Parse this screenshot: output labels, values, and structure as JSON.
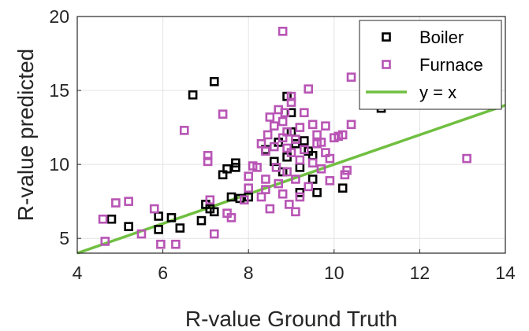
{
  "chart_data": {
    "type": "scatter",
    "title": "",
    "xlabel": "R-value Ground Truth",
    "ylabel": "R-value predicted",
    "xlim": [
      4,
      14
    ],
    "ylim": [
      4,
      20
    ],
    "xticks": [
      "4",
      "6",
      "8",
      "10",
      "12",
      "14"
    ],
    "yticks": [
      "5",
      "10",
      "15",
      "20"
    ],
    "grid": true,
    "legend_position": "top-right",
    "series": [
      {
        "name": "Boiler",
        "marker": "square",
        "color": "#000000",
        "points": [
          [
            4.8,
            6.3
          ],
          [
            5.2,
            5.8
          ],
          [
            5.9,
            5.6
          ],
          [
            5.9,
            6.5
          ],
          [
            6.2,
            6.4
          ],
          [
            6.4,
            5.7
          ],
          [
            6.7,
            14.7
          ],
          [
            6.9,
            6.2
          ],
          [
            7.0,
            7.3
          ],
          [
            7.1,
            7.0
          ],
          [
            7.2,
            6.8
          ],
          [
            7.2,
            15.6
          ],
          [
            7.4,
            9.3
          ],
          [
            7.5,
            9.7
          ],
          [
            7.7,
            9.8
          ],
          [
            7.7,
            10.1
          ],
          [
            7.6,
            7.8
          ],
          [
            7.8,
            7.7
          ],
          [
            8.0,
            7.8
          ],
          [
            8.4,
            11.0
          ],
          [
            8.6,
            10.2
          ],
          [
            8.7,
            11.5
          ],
          [
            8.8,
            9.5
          ],
          [
            8.9,
            10.5
          ],
          [
            8.9,
            14.6
          ],
          [
            9.0,
            12.2
          ],
          [
            9.0,
            13.5
          ],
          [
            9.1,
            11.4
          ],
          [
            9.2,
            9.8
          ],
          [
            9.2,
            8.1
          ],
          [
            9.3,
            11.6
          ],
          [
            9.4,
            10.9
          ],
          [
            9.5,
            9.0
          ],
          [
            9.5,
            10.6
          ],
          [
            9.6,
            8.1
          ],
          [
            10.2,
            8.4
          ],
          [
            11.1,
            13.8
          ]
        ]
      },
      {
        "name": "Furnace",
        "marker": "square",
        "color": "#b855b5",
        "points": [
          [
            4.6,
            6.3
          ],
          [
            4.65,
            4.8
          ],
          [
            4.9,
            7.4
          ],
          [
            5.2,
            7.5
          ],
          [
            5.5,
            5.3
          ],
          [
            5.8,
            7.0
          ],
          [
            5.95,
            4.6
          ],
          [
            6.3,
            4.6
          ],
          [
            6.5,
            12.3
          ],
          [
            7.05,
            10.2
          ],
          [
            7.05,
            10.6
          ],
          [
            7.1,
            7.6
          ],
          [
            7.2,
            5.3
          ],
          [
            7.4,
            13.4
          ],
          [
            7.5,
            6.7
          ],
          [
            7.6,
            6.4
          ],
          [
            7.9,
            7.6
          ],
          [
            8.0,
            8.4
          ],
          [
            8.0,
            9.2
          ],
          [
            8.1,
            9.9
          ],
          [
            8.2,
            9.8
          ],
          [
            8.3,
            7.8
          ],
          [
            8.3,
            11.4
          ],
          [
            8.4,
            8.3
          ],
          [
            8.4,
            9.0
          ],
          [
            8.4,
            10.9
          ],
          [
            8.45,
            12.0
          ],
          [
            8.5,
            13.2
          ],
          [
            8.5,
            7.0
          ],
          [
            8.6,
            11.2
          ],
          [
            8.6,
            12.6
          ],
          [
            8.65,
            9.8
          ],
          [
            8.7,
            13.7
          ],
          [
            8.7,
            8.7
          ],
          [
            8.8,
            19.0
          ],
          [
            8.8,
            11.8
          ],
          [
            8.8,
            12.9
          ],
          [
            8.8,
            8.0
          ],
          [
            8.85,
            13.5
          ],
          [
            8.9,
            11.1
          ],
          [
            8.9,
            12.2
          ],
          [
            8.9,
            9.5
          ],
          [
            8.95,
            7.3
          ],
          [
            9.0,
            14.2
          ],
          [
            9.0,
            14.6
          ],
          [
            9.0,
            10.8
          ],
          [
            9.1,
            11.7
          ],
          [
            9.1,
            6.8
          ],
          [
            9.1,
            9.0
          ],
          [
            9.2,
            12.5
          ],
          [
            9.2,
            10.3
          ],
          [
            9.2,
            7.8
          ],
          [
            9.3,
            13.5
          ],
          [
            9.3,
            11.0
          ],
          [
            9.4,
            15.1
          ],
          [
            9.4,
            8.5
          ],
          [
            9.5,
            12.7
          ],
          [
            9.5,
            10.1
          ],
          [
            9.6,
            11.4
          ],
          [
            9.6,
            12.0
          ],
          [
            9.7,
            11.5
          ],
          [
            9.7,
            9.7
          ],
          [
            9.8,
            10.8
          ],
          [
            9.8,
            12.6
          ],
          [
            9.9,
            8.9
          ],
          [
            9.9,
            10.4
          ],
          [
            10.0,
            11.8
          ],
          [
            10.1,
            11.9
          ],
          [
            10.2,
            12.0
          ],
          [
            10.25,
            9.3
          ],
          [
            10.3,
            9.6
          ],
          [
            10.4,
            12.7
          ],
          [
            10.4,
            15.9
          ],
          [
            13.1,
            10.4
          ]
        ]
      },
      {
        "name": "y = x",
        "type": "line",
        "color": "#70bf41",
        "points": [
          [
            4,
            4
          ],
          [
            14,
            14
          ]
        ]
      }
    ]
  }
}
